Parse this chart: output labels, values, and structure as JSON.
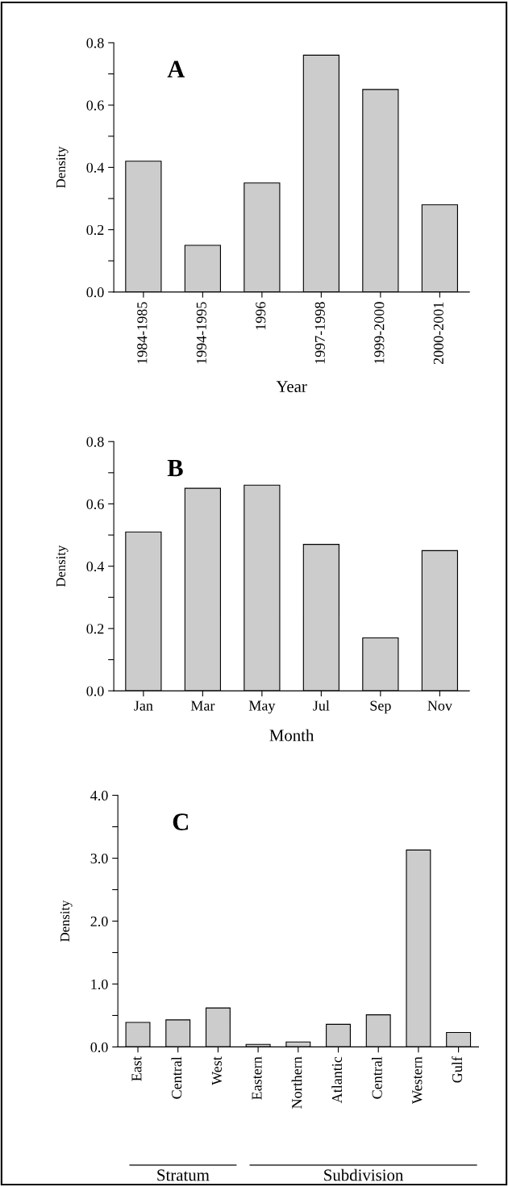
{
  "chart_data": [
    {
      "type": "bar",
      "title": "A",
      "xlabel": "Year",
      "ylabel": "Density",
      "color": "#cccccc",
      "categories": [
        "1984-1985",
        "1994-1995",
        "1996",
        "1997-1998",
        "1999-2000",
        "2000-2001"
      ],
      "values": [
        0.42,
        0.15,
        0.35,
        0.76,
        0.65,
        0.28
      ],
      "ylim": [
        0,
        0.8
      ],
      "yticks": [
        {
          "value": 0,
          "label": "0.0"
        },
        {
          "value": 0.1,
          "label": null
        },
        {
          "value": 0.2,
          "label": "0.2"
        },
        {
          "value": 0.3,
          "label": null
        },
        {
          "value": 0.4,
          "label": "0.4"
        },
        {
          "value": 0.5,
          "label": null
        },
        {
          "value": 0.6,
          "label": "0.6"
        },
        {
          "value": 0.7,
          "label": null
        },
        {
          "value": 0.8,
          "label": "0.8"
        }
      ],
      "grid": false
    },
    {
      "type": "bar",
      "title": "B",
      "xlabel": "Month",
      "ylabel": "Density",
      "color": "#cccccc",
      "categories": [
        "Jan",
        "Mar",
        "May",
        "Jul",
        "Sep",
        "Nov"
      ],
      "values": [
        0.51,
        0.65,
        0.66,
        0.47,
        0.17,
        0.45
      ],
      "ylim": [
        0,
        0.8
      ],
      "yticks": [
        {
          "value": 0,
          "label": "0.0"
        },
        {
          "value": 0.1,
          "label": null
        },
        {
          "value": 0.2,
          "label": "0.2"
        },
        {
          "value": 0.3,
          "label": null
        },
        {
          "value": 0.4,
          "label": "0.4"
        },
        {
          "value": 0.5,
          "label": null
        },
        {
          "value": 0.6,
          "label": "0.6"
        },
        {
          "value": 0.7,
          "label": null
        },
        {
          "value": 0.8,
          "label": "0.8"
        }
      ],
      "grid": false
    },
    {
      "type": "bar",
      "title": "C",
      "ylabel": "Density",
      "color": "#cccccc",
      "categories": [
        "East",
        "Central",
        "West",
        "Eastern",
        "Northern",
        "Atlantic",
        "Central",
        "Western",
        "Gulf"
      ],
      "values": [
        0.39,
        0.43,
        0.62,
        0.04,
        0.08,
        0.36,
        0.51,
        3.13,
        0.23
      ],
      "ylim": [
        0,
        4
      ],
      "yticks": [
        {
          "value": 0,
          "label": "0.0"
        },
        {
          "value": 0.5,
          "label": null
        },
        {
          "value": 1,
          "label": "1.0"
        },
        {
          "value": 1.5,
          "label": null
        },
        {
          "value": 2,
          "label": "2.0"
        },
        {
          "value": 2.5,
          "label": null
        },
        {
          "value": 3,
          "label": "3.0"
        },
        {
          "value": 3.5,
          "label": null
        },
        {
          "value": 4,
          "label": "4.0"
        }
      ],
      "grid": false,
      "annotations": [
        "Stratum",
        "Subdivision"
      ]
    }
  ]
}
